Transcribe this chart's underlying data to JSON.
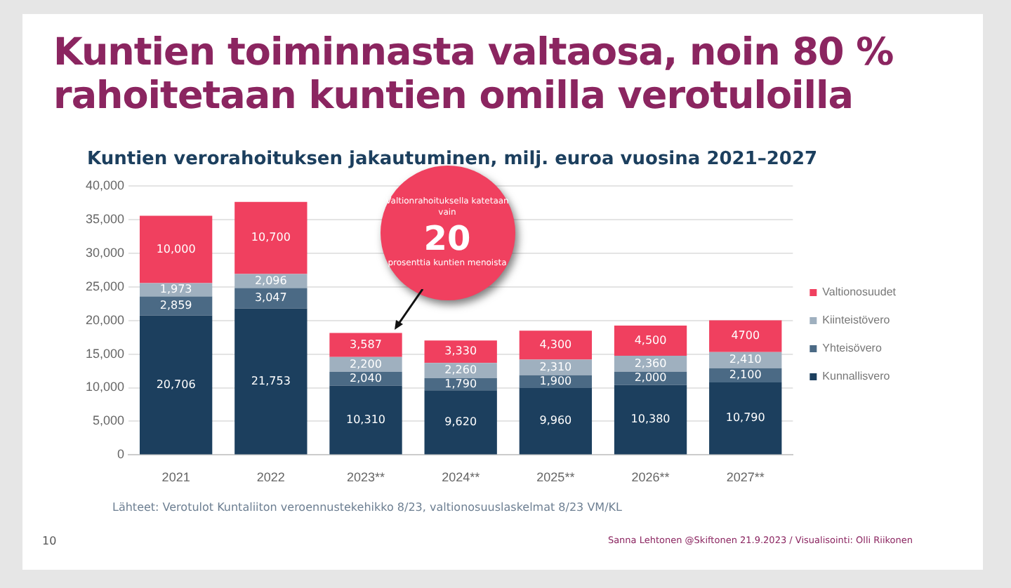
{
  "chart_data": {
    "type": "bar",
    "title": "Kuntien toiminnasta valtaosa, noin 80 % rahoitetaan kuntien omilla verotuloilla",
    "subtitle": "Kuntien verorahoituksen jakautuminen, milj. euroa vuosina 2021–2027",
    "categories": [
      "2021",
      "2022",
      "2023**",
      "2024**",
      "2025**",
      "2026**",
      "2027**"
    ],
    "stacked": true,
    "ylim": [
      0,
      40000
    ],
    "yticks": [
      0,
      {
        "value": 5000,
        "label": "5,000"
      },
      {
        "value": 10000,
        "label": "10,000"
      },
      {
        "value": 15000,
        "label": "15,000"
      },
      {
        "value": 20000,
        "label": "20,000"
      },
      {
        "value": 25000,
        "label": "25,000"
      },
      {
        "value": 30000,
        "label": "30,000"
      },
      {
        "value": 35000,
        "label": "35,000"
      },
      {
        "value": 40000,
        "label": "40,000"
      }
    ],
    "grid": "y",
    "legend": "right",
    "series": [
      {
        "name": "Kunnallisvero",
        "color": "#1c3f5e",
        "values": [
          20706,
          21753,
          10310,
          9620,
          9960,
          10380,
          10790
        ],
        "value_labels": [
          "20,706",
          "21,753",
          "10,310",
          "9,620",
          "9,960",
          "10,380",
          "10,790"
        ]
      },
      {
        "name": "Yhteisövero",
        "color": "#4b6a85",
        "values": [
          2859,
          3047,
          2040,
          1790,
          1900,
          2000,
          2100
        ],
        "value_labels": [
          "2,859",
          "3,047",
          "2,040",
          "1,790",
          "1,900",
          "2,000",
          "2,100"
        ]
      },
      {
        "name": "Kiinteistövero",
        "color": "#9fb0bf",
        "values": [
          1973,
          2096,
          2200,
          2260,
          2310,
          2360,
          2410
        ],
        "value_labels": [
          "1,973",
          "2,096",
          "2,200",
          "2,260",
          "2,310",
          "2,360",
          "2,410"
        ]
      },
      {
        "name": "Valtionosuudet",
        "color": "#f0405f",
        "values": [
          10000,
          10700,
          3587,
          3330,
          4300,
          4500,
          4700
        ],
        "value_labels": [
          "10,000",
          "10,700",
          "3,587",
          "3,330",
          "4,300",
          "4,500",
          "4700"
        ]
      }
    ],
    "annotations": [
      {
        "text": "Valtionrahoituksella katetaan vain 20 prosenttia kuntien menoista",
        "x": "2023**",
        "y": 18137
      },
      "Lähteet: Verotulot Kuntaliiton veroennustekehikko 8/23, valtionosuuslaskelmat 8/23 VM/KL",
      "10",
      "Sanna Lehtonen @Skiftonen 21.9.2023 / Visualisointi: Olli Riikonen"
    ]
  }
}
